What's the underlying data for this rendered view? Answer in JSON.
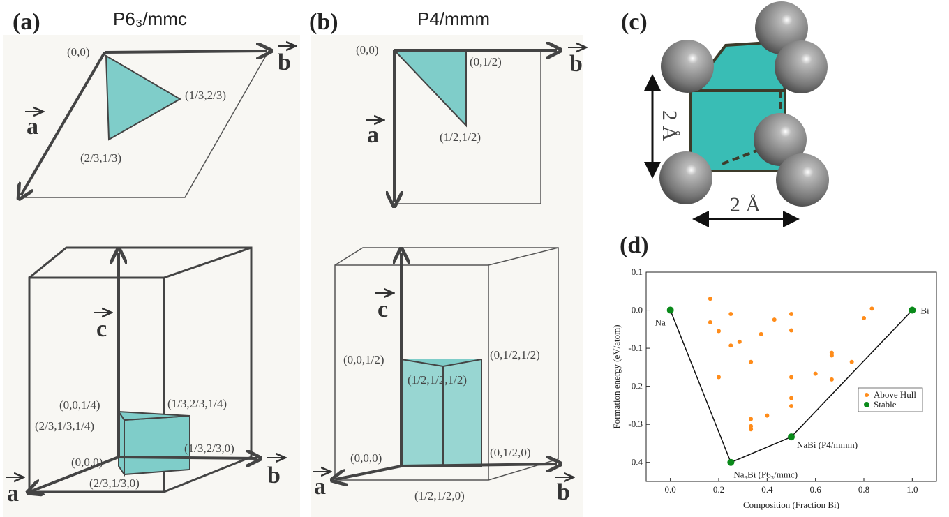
{
  "panel_a": {
    "label": "(a)",
    "title": "P6₃/mmc",
    "top_points": [
      "(0,0)",
      "(1/3,2/3)",
      "(2/3,1/3)"
    ],
    "bottom_points": [
      "(0,0,1/4)",
      "(2/3,1/3,1/4)",
      "(1/3,2/3,1/4)",
      "(0,0,0)",
      "(1/3,2/3,0)",
      "(2/3,1/3,0)"
    ],
    "vectors": [
      "a",
      "b",
      "c"
    ]
  },
  "panel_b": {
    "label": "(b)",
    "title": "P4/mmm",
    "top_points": [
      "(0,0)",
      "(0,1/2)",
      "(1/2,1/2)"
    ],
    "bottom_points": [
      "(0,0,1/2)",
      "(0,1/2,1/2)",
      "(1/2,1/2,1/2)",
      "(0,0,0)",
      "(0,1/2,0)",
      "(1/2,1/2,0)"
    ],
    "vectors": [
      "a",
      "b",
      "c"
    ]
  },
  "panel_c": {
    "label": "(c)",
    "dimensions": [
      "2 Å",
      "2 Å"
    ]
  },
  "panel_d": {
    "label": "(d)"
  },
  "chart_data": {
    "type": "scatter",
    "x_label": "Composition (Fraction Bi)",
    "y_label": "Formation energy (eV/atom)",
    "xlim": [
      -0.1,
      1.1
    ],
    "ylim": [
      -0.45,
      0.1
    ],
    "xticks": [
      {
        "value": 0,
        "label": "0.0"
      },
      0.2,
      0.4,
      0.6,
      0.8,
      {
        "value": 1,
        "label": "1.0"
      }
    ],
    "yticks": [
      0.1,
      {
        "value": 0,
        "label": "0.0"
      },
      -0.1,
      -0.2,
      -0.3,
      -0.4
    ],
    "legend": "right",
    "series": [
      {
        "name": "Above Hull",
        "color": "#ff8c1a",
        "x": [
          0.165,
          0.165,
          0.2,
          0.2,
          0.25,
          0.25,
          0.286,
          0.333,
          0.333,
          0.333,
          0.333,
          0.375,
          0.4,
          0.43,
          0.5,
          0.5,
          0.5,
          0.5,
          0.5,
          0.6,
          0.667,
          0.667,
          0.667,
          0.75,
          0.8,
          0.833
        ],
        "values": [
          0.03,
          -0.032,
          -0.055,
          -0.176,
          -0.01,
          -0.093,
          -0.083,
          -0.136,
          -0.286,
          -0.305,
          -0.313,
          -0.063,
          -0.277,
          -0.025,
          -0.01,
          -0.053,
          -0.176,
          -0.231,
          -0.252,
          -0.167,
          -0.112,
          -0.119,
          -0.182,
          -0.136,
          -0.021,
          0.004
        ]
      },
      {
        "name": "Stable",
        "color": "#0a8a1a",
        "hull": true,
        "x": [
          0,
          0.25,
          0.5,
          1
        ],
        "values": [
          0,
          -0.4,
          -0.333,
          0
        ],
        "labels": [
          "Na",
          "Na₃Bi (P6₃/mmc)",
          "NaBi (P4/mmm)",
          "Bi"
        ]
      }
    ]
  }
}
